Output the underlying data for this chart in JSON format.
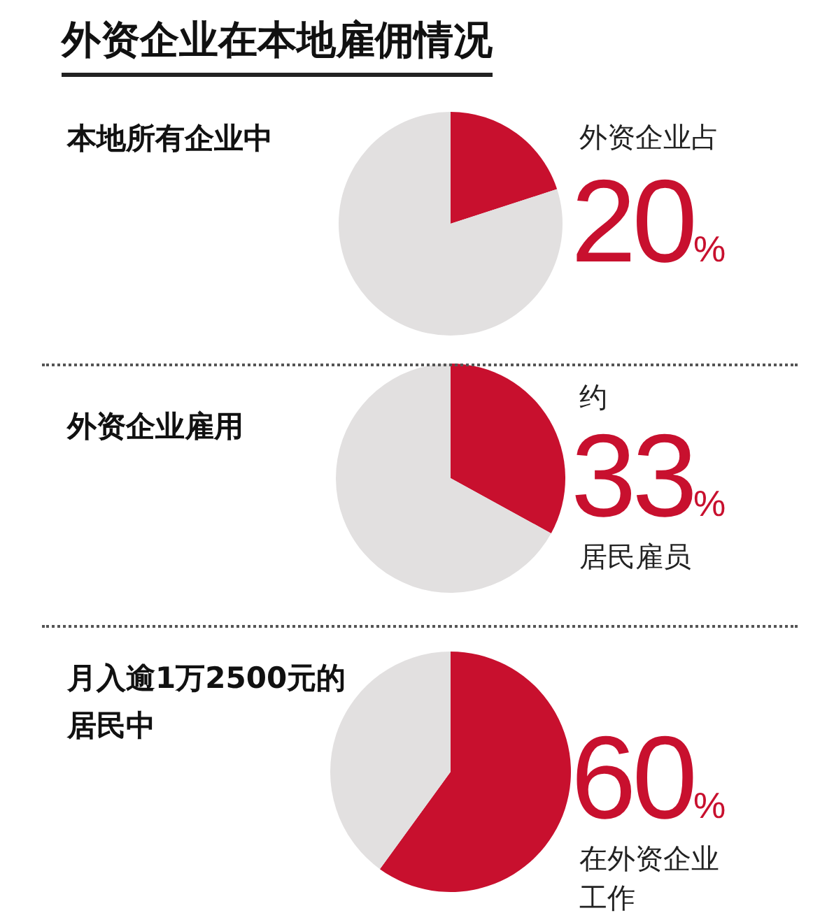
{
  "chart_data": [
    {
      "type": "pie",
      "title": "外资企业在本地雇佣情况",
      "subtitle": "本地所有企业中",
      "categories": [
        null,
        null
      ],
      "values": [
        20,
        80
      ],
      "colors": [
        "#c8102e",
        "#e2e0e0"
      ],
      "value_labels": [
        "20%",
        null
      ],
      "annotations": [
        "外资企业占"
      ]
    },
    {
      "type": "pie",
      "subtitle": "外资企业雇用",
      "categories": [
        null,
        null
      ],
      "values": [
        33,
        67
      ],
      "colors": [
        "#c8102e",
        "#e2e0e0"
      ],
      "value_labels": [
        "33%",
        null
      ],
      "annotations": [
        "约",
        "居民雇员"
      ]
    },
    {
      "type": "pie",
      "subtitle": "月入逾1万2500元的居民中",
      "categories": [
        null,
        null
      ],
      "values": [
        60,
        40
      ],
      "colors": [
        "#c8102e",
        "#e2e0e0"
      ],
      "value_labels": [
        "60%",
        null
      ],
      "annotations": [
        "在外资企业工作"
      ]
    }
  ]
}
